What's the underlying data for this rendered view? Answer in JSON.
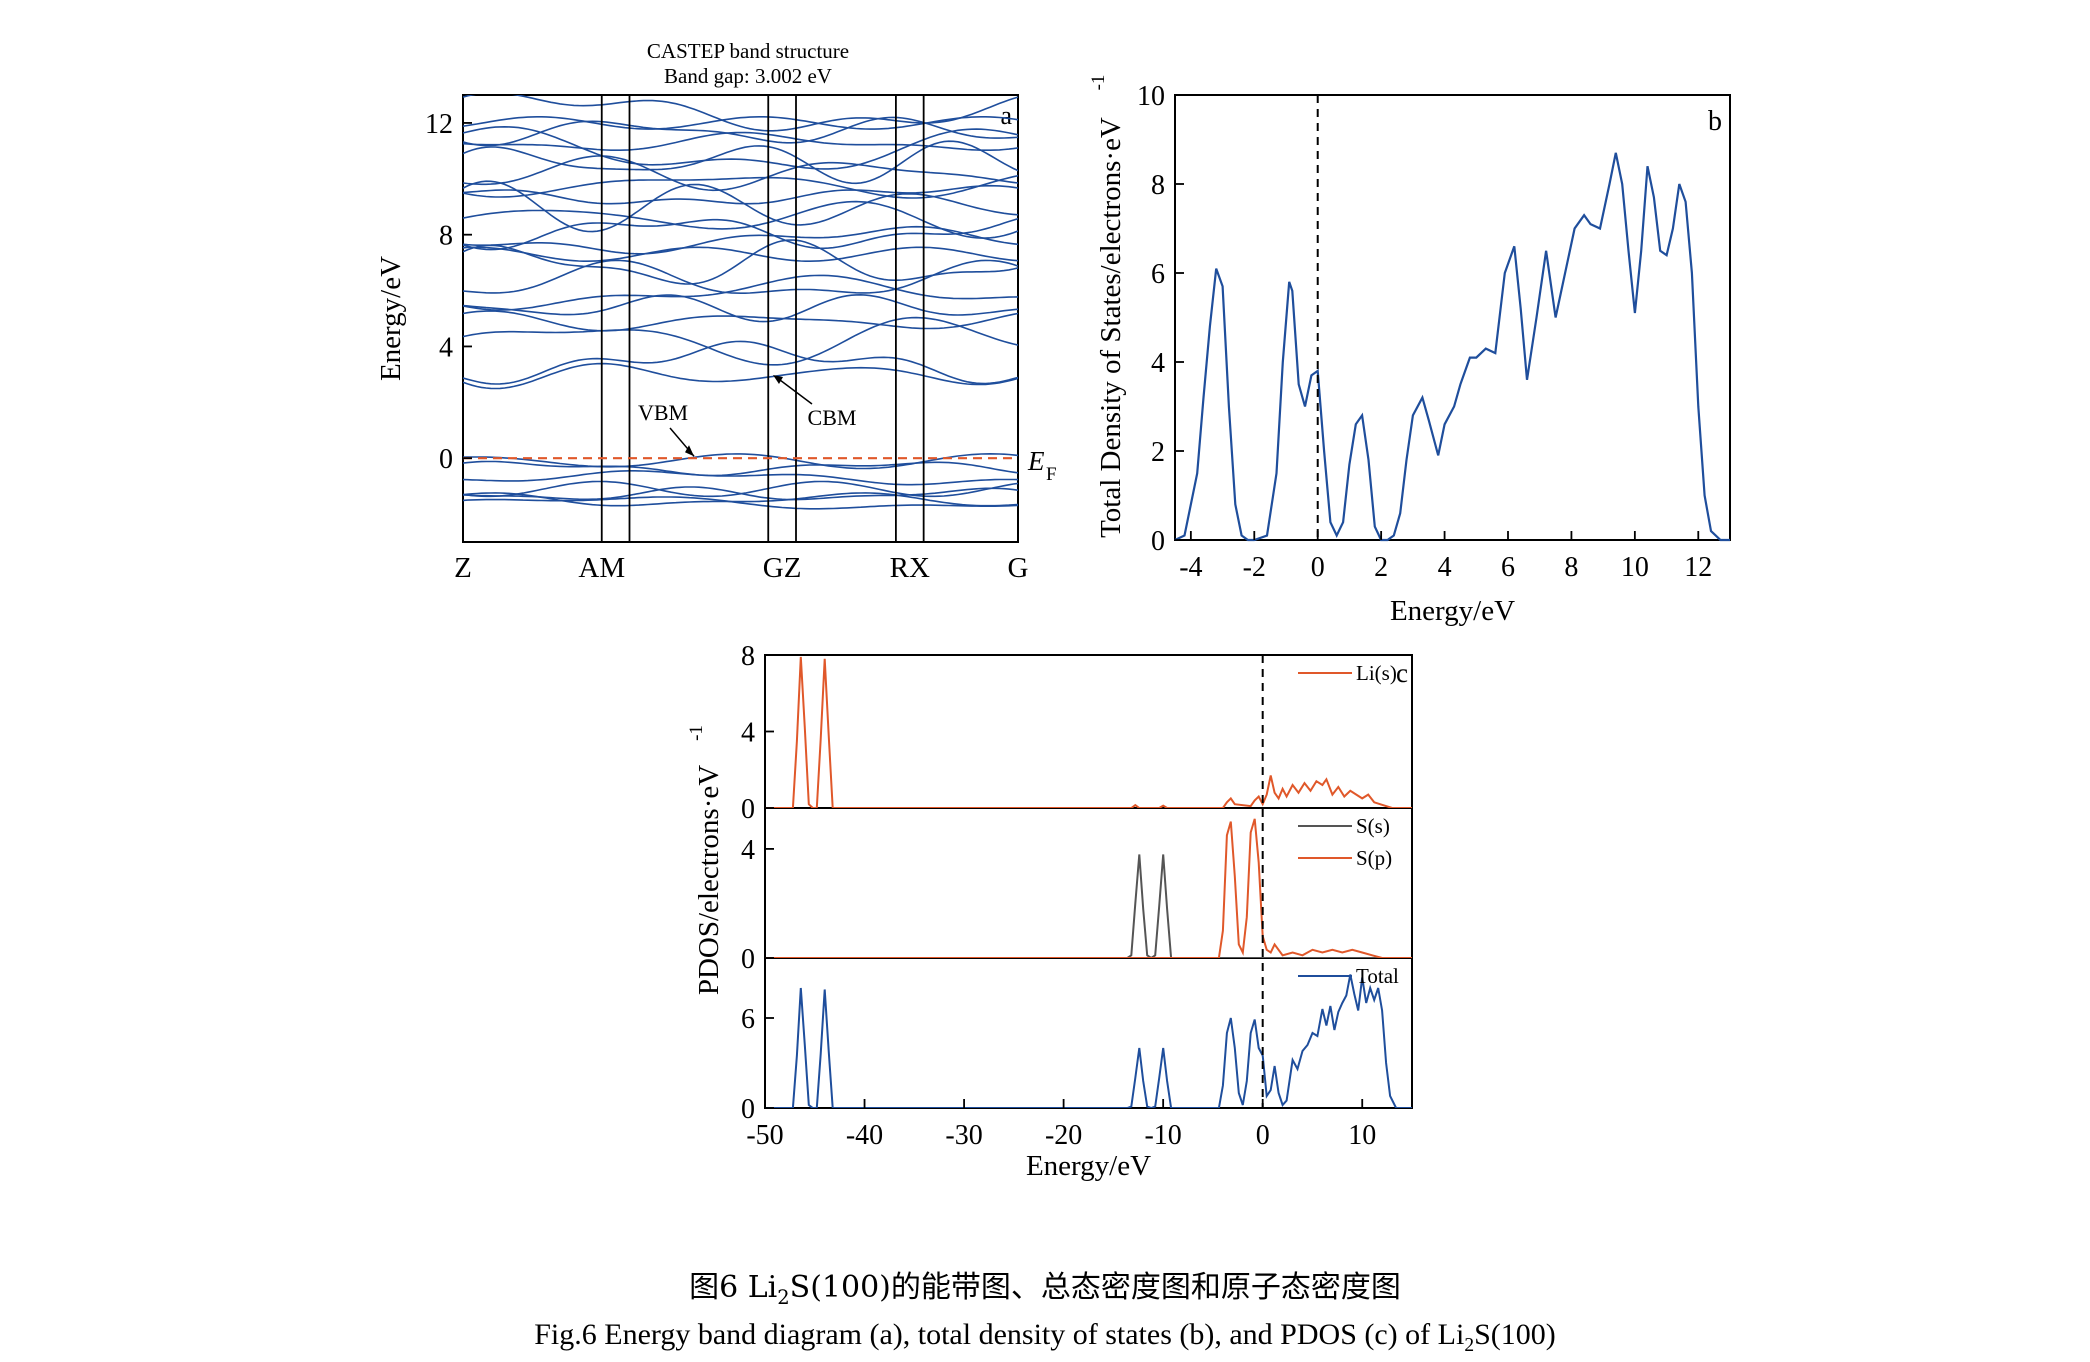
{
  "chart_data": [
    {
      "panel": "a",
      "type": "line",
      "title": "CASTEP band structure",
      "subtitle": "Band gap: 3.002 eV",
      "ylabel": "Energy/eV",
      "yticks": [
        0,
        4,
        8,
        12
      ],
      "ylim": [
        -3,
        13
      ],
      "kpoints": [
        "Z",
        "AM",
        "GZ",
        "RX",
        "G"
      ],
      "kpoint_positions": [
        0,
        0.25,
        0.575,
        0.805,
        1.0
      ],
      "kpoint_dividers": [
        0.25,
        0.3,
        0.55,
        0.6,
        0.78,
        0.83
      ],
      "fermi_level": 0,
      "fermi_label": "E",
      "fermi_label_sub": "F",
      "annotations": [
        "VBM",
        "CBM"
      ],
      "colors": {
        "bands": "#1f4e9c",
        "fermi": "#e0582a"
      },
      "valence_bands": [
        -1.6,
        -1.5,
        -1.3,
        -1.1,
        -0.7,
        -0.35,
        -0.1
      ],
      "conduction_bands": [
        3.0,
        3.4,
        4.2,
        4.9,
        5.4,
        5.9,
        6.3,
        6.9,
        7.3,
        7.8,
        8.1,
        8.6,
        9.0,
        9.4,
        9.8,
        10.2,
        10.6,
        11.0,
        11.3,
        11.7,
        12.0,
        12.4
      ]
    },
    {
      "panel": "b",
      "type": "line",
      "xlabel": "Energy/eV",
      "ylabel": "Total Density of States/electrons·eV",
      "ylabel_sup": "-1",
      "xlim": [
        -4.5,
        13
      ],
      "ylim": [
        0,
        10
      ],
      "xticks": [
        -4,
        -2,
        0,
        2,
        4,
        6,
        8,
        10,
        12
      ],
      "yticks": [
        0,
        2,
        4,
        6,
        8,
        10
      ],
      "color": "#1f4e9c",
      "x": [
        -4.5,
        -4.2,
        -3.8,
        -3.6,
        -3.4,
        -3.2,
        -3.0,
        -2.8,
        -2.6,
        -2.4,
        -2.2,
        -2.0,
        -1.6,
        -1.3,
        -1.1,
        -0.9,
        -0.8,
        -0.6,
        -0.4,
        -0.2,
        0.0,
        0.2,
        0.4,
        0.6,
        0.8,
        1.0,
        1.2,
        1.4,
        1.6,
        1.8,
        2.0,
        2.2,
        2.4,
        2.6,
        2.8,
        3.0,
        3.3,
        3.5,
        3.8,
        4.0,
        4.3,
        4.5,
        4.8,
        5.0,
        5.3,
        5.6,
        5.9,
        6.2,
        6.4,
        6.6,
        6.9,
        7.2,
        7.5,
        7.8,
        8.1,
        8.4,
        8.6,
        8.9,
        9.2,
        9.4,
        9.6,
        9.8,
        10.0,
        10.2,
        10.4,
        10.6,
        10.8,
        11.0,
        11.2,
        11.4,
        11.6,
        11.8,
        12.0,
        12.2,
        12.4,
        12.7,
        13.0
      ],
      "values": [
        0,
        0.1,
        1.5,
        3.2,
        4.8,
        6.1,
        5.7,
        3.0,
        0.8,
        0.1,
        0,
        0,
        0.1,
        1.5,
        4.0,
        5.8,
        5.6,
        3.5,
        3.0,
        3.7,
        3.8,
        2.0,
        0.4,
        0.1,
        0.4,
        1.7,
        2.6,
        2.8,
        1.8,
        0.3,
        0,
        0,
        0.1,
        0.6,
        1.8,
        2.8,
        3.2,
        2.7,
        1.9,
        2.6,
        3.0,
        3.5,
        4.1,
        4.1,
        4.3,
        4.2,
        6.0,
        6.6,
        5.2,
        3.6,
        5.0,
        6.5,
        5.0,
        6.0,
        7.0,
        7.3,
        7.1,
        7.0,
        8.0,
        8.7,
        8.0,
        6.5,
        5.1,
        6.5,
        8.4,
        7.7,
        6.5,
        6.4,
        7.0,
        8.0,
        7.6,
        6.0,
        3.0,
        1.0,
        0.2,
        0,
        0
      ],
      "fermi_level": 0
    },
    {
      "panel": "c",
      "type": "line",
      "xlabel": "Energy/eV",
      "ylabel": "PDOS/electrons·eV",
      "ylabel_sup": "-1",
      "xlim": [
        -50,
        15
      ],
      "xticks": [
        -50,
        -40,
        -30,
        -20,
        -10,
        0,
        10
      ],
      "fermi_level": 0,
      "subplots": [
        {
          "name": "Li",
          "ylim": [
            0,
            8
          ],
          "yticks": [
            0,
            4,
            8
          ],
          "series": [
            {
              "name": "Li(s)",
              "color": "#e0582a",
              "x": [
                -50,
                -47.2,
                -46.8,
                -46.4,
                -46.0,
                -45.6,
                -45.2,
                -44.8,
                -44.4,
                -44.0,
                -43.6,
                -43.2,
                -20,
                -13.2,
                -12.8,
                -12.4,
                -10.4,
                -10.0,
                -9.6,
                -4.0,
                -3.6,
                -3.2,
                -2.8,
                -1.2,
                -0.8,
                -0.4,
                0,
                0.4,
                0.8,
                1.2,
                1.6,
                2.0,
                2.4,
                3.0,
                3.6,
                4.2,
                4.8,
                5.4,
                6.0,
                6.4,
                7.0,
                7.6,
                8.2,
                8.8,
                9.4,
                10.0,
                10.6,
                11.2,
                11.8,
                12.4,
                13.0,
                15
              ],
              "values": [
                0,
                0,
                3.5,
                7.9,
                4.2,
                0.2,
                0,
                0,
                3.6,
                7.8,
                3.8,
                0,
                0,
                0,
                0.15,
                0,
                0,
                0.12,
                0,
                0,
                0.3,
                0.5,
                0.2,
                0.1,
                0.4,
                0.6,
                0.2,
                0.7,
                1.7,
                0.8,
                0.5,
                1.0,
                0.6,
                1.2,
                0.8,
                1.3,
                0.9,
                1.4,
                1.2,
                1.5,
                0.7,
                1.1,
                0.6,
                0.9,
                0.7,
                0.5,
                0.7,
                0.3,
                0.2,
                0.1,
                0,
                0
              ]
            }
          ]
        },
        {
          "name": "S",
          "ylim": [
            0,
            5.5
          ],
          "yticks": [
            0,
            4
          ],
          "series": [
            {
              "name": "S(s)",
              "color": "#555555",
              "x": [
                -50,
                -13.6,
                -13.2,
                -12.8,
                -12.4,
                -12.0,
                -11.6,
                -11.2,
                -10.8,
                -10.4,
                -10.0,
                -9.6,
                -9.2,
                15
              ],
              "values": [
                0,
                0,
                0.1,
                2.0,
                3.8,
                1.8,
                0.1,
                0,
                0.1,
                1.9,
                3.8,
                1.8,
                0,
                0
              ]
            },
            {
              "name": "S(p)",
              "color": "#e0582a",
              "x": [
                -50,
                -4.4,
                -4.0,
                -3.6,
                -3.2,
                -2.8,
                -2.4,
                -2.0,
                -1.6,
                -1.2,
                -0.8,
                -0.4,
                0,
                0.4,
                0.8,
                1.2,
                2.0,
                3.0,
                4.0,
                5.0,
                6.0,
                7.0,
                8.0,
                9.0,
                10.0,
                11.0,
                12.0,
                15
              ],
              "values": [
                0,
                0,
                1.0,
                4.5,
                5.0,
                3.0,
                0.5,
                0.2,
                1.5,
                4.6,
                5.1,
                3.5,
                0.8,
                0.3,
                0.2,
                0.5,
                0.1,
                0.2,
                0.1,
                0.3,
                0.2,
                0.3,
                0.2,
                0.3,
                0.2,
                0.1,
                0,
                0
              ]
            }
          ]
        },
        {
          "name": "Total",
          "ylim": [
            0,
            10
          ],
          "yticks": [
            0,
            6
          ],
          "series": [
            {
              "name": "Total",
              "color": "#1f4e9c",
              "x": [
                -50,
                -47.2,
                -46.8,
                -46.4,
                -46.0,
                -45.6,
                -45.2,
                -44.8,
                -44.4,
                -44.0,
                -43.6,
                -43.2,
                -13.6,
                -13.2,
                -12.8,
                -12.4,
                -12.0,
                -11.6,
                -11.2,
                -10.8,
                -10.4,
                -10.0,
                -9.6,
                -9.2,
                -4.4,
                -4.0,
                -3.6,
                -3.2,
                -2.8,
                -2.4,
                -2.0,
                -1.6,
                -1.2,
                -0.8,
                -0.4,
                0,
                0.4,
                0.8,
                1.2,
                1.6,
                2.0,
                2.4,
                3.0,
                3.5,
                4.0,
                4.5,
                5.0,
                5.5,
                6.0,
                6.4,
                6.8,
                7.2,
                7.6,
                8.0,
                8.4,
                8.8,
                9.2,
                9.6,
                10.0,
                10.4,
                10.8,
                11.2,
                11.6,
                12.0,
                12.4,
                12.8,
                13.4,
                15
              ],
              "values": [
                0,
                0,
                3.5,
                8.0,
                4.2,
                0.2,
                0,
                0,
                3.6,
                7.9,
                3.8,
                0,
                0,
                0.1,
                2.0,
                4.0,
                1.8,
                0.1,
                0,
                0.1,
                2.0,
                4.0,
                1.8,
                0,
                0,
                1.5,
                5.0,
                6.0,
                4.0,
                1.0,
                0.2,
                1.8,
                5.0,
                5.9,
                4.0,
                3.5,
                0.8,
                1.2,
                2.8,
                1.0,
                0.2,
                0.5,
                3.2,
                2.6,
                3.8,
                4.2,
                5.0,
                4.8,
                6.6,
                5.5,
                6.8,
                5.2,
                6.4,
                7.0,
                7.5,
                8.9,
                7.6,
                6.5,
                8.7,
                7.0,
                8.0,
                7.2,
                8.0,
                6.5,
                3.0,
                0.8,
                0,
                0
              ]
            }
          ]
        }
      ]
    }
  ],
  "captions": {
    "cn_pre": "图6  Li",
    "cn_sub": "2",
    "cn_post": "S(100)的能带图、总态密度图和原子态密度图",
    "en_pre": "Fig.6  Energy band diagram (a), total density of states (b), and PDOS (c) of Li",
    "en_sub": "2",
    "en_post": "S(100)"
  }
}
